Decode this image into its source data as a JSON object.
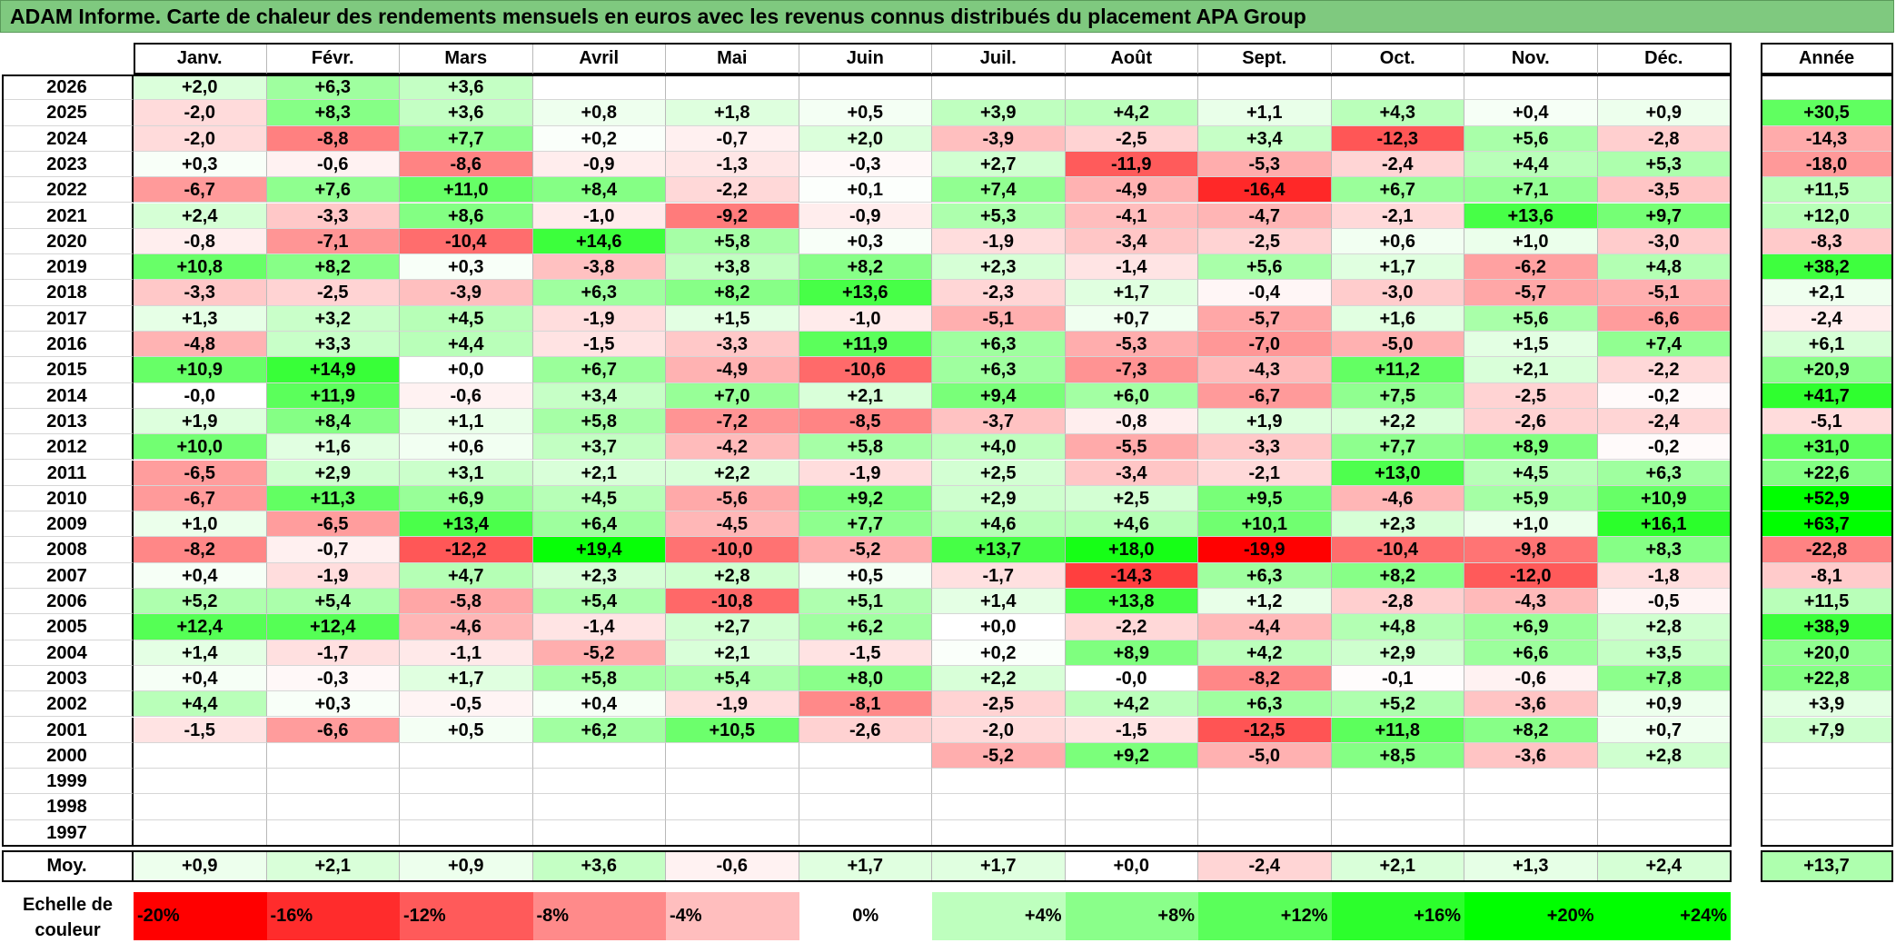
{
  "title": "ADAM Informe. Carte de chaleur des rendements mensuels en euros avec les revenus connus distribués du placement APA Group",
  "colors": {
    "title_bg": "#7fc97f",
    "positive_max": "#00ff00",
    "negative_max": "#ff0000",
    "neutral": "#ffffff"
  },
  "chart_data": {
    "type": "heatmap",
    "title": "ADAM Informe. Carte de chaleur des rendements mensuels en euros avec les revenus connus distribués du placement APA Group",
    "months": [
      "Janv.",
      "Févr.",
      "Mars",
      "Avril",
      "Mai",
      "Juin",
      "Juil.",
      "Août",
      "Sept.",
      "Oct.",
      "Nov.",
      "Déc."
    ],
    "year_header": "Année",
    "rows": [
      {
        "year": "2026",
        "months": [
          "+2,0",
          "+6,3",
          "+3,6",
          "",
          "",
          "",
          "",
          "",
          "",
          "",
          "",
          ""
        ],
        "annual": ""
      },
      {
        "year": "2025",
        "months": [
          "-2,0",
          "+8,3",
          "+3,6",
          "+0,8",
          "+1,8",
          "+0,5",
          "+3,9",
          "+4,2",
          "+1,1",
          "+4,3",
          "+0,4",
          "+0,9"
        ],
        "annual": "+30,5"
      },
      {
        "year": "2024",
        "months": [
          "-2,0",
          "-8,8",
          "+7,7",
          "+0,2",
          "-0,7",
          "+2,0",
          "-3,9",
          "-2,5",
          "+3,4",
          "-12,3",
          "+5,6",
          "-2,8"
        ],
        "annual": "-14,3"
      },
      {
        "year": "2023",
        "months": [
          "+0,3",
          "-0,6",
          "-8,6",
          "-0,9",
          "-1,3",
          "-0,3",
          "+2,7",
          "-11,9",
          "-5,3",
          "-2,4",
          "+4,4",
          "+5,3"
        ],
        "annual": "-18,0"
      },
      {
        "year": "2022",
        "months": [
          "-6,7",
          "+7,6",
          "+11,0",
          "+8,4",
          "-2,2",
          "+0,1",
          "+7,4",
          "-4,9",
          "-16,4",
          "+6,7",
          "+7,1",
          "-3,5"
        ],
        "annual": "+11,5"
      },
      {
        "year": "2021",
        "months": [
          "+2,4",
          "-3,3",
          "+8,6",
          "-1,0",
          "-9,2",
          "-0,9",
          "+5,3",
          "-4,1",
          "-4,7",
          "-2,1",
          "+13,6",
          "+9,7"
        ],
        "annual": "+12,0"
      },
      {
        "year": "2020",
        "months": [
          "-0,8",
          "-7,1",
          "-10,4",
          "+14,6",
          "+5,8",
          "+0,3",
          "-1,9",
          "-3,4",
          "-2,5",
          "+0,6",
          "+1,0",
          "-3,0"
        ],
        "annual": "-8,3"
      },
      {
        "year": "2019",
        "months": [
          "+10,8",
          "+8,2",
          "+0,3",
          "-3,8",
          "+3,8",
          "+8,2",
          "+2,3",
          "-1,4",
          "+5,6",
          "+1,7",
          "-6,2",
          "+4,8"
        ],
        "annual": "+38,2"
      },
      {
        "year": "2018",
        "months": [
          "-3,3",
          "-2,5",
          "-3,9",
          "+6,3",
          "+8,2",
          "+13,6",
          "-2,3",
          "+1,7",
          "-0,4",
          "-3,0",
          "-5,7",
          "-5,1"
        ],
        "annual": "+2,1"
      },
      {
        "year": "2017",
        "months": [
          "+1,3",
          "+3,2",
          "+4,5",
          "-1,9",
          "+1,5",
          "-1,0",
          "-5,1",
          "+0,7",
          "-5,7",
          "+1,6",
          "+5,6",
          "-6,6"
        ],
        "annual": "-2,4"
      },
      {
        "year": "2016",
        "months": [
          "-4,8",
          "+3,3",
          "+4,4",
          "-1,5",
          "-3,3",
          "+11,9",
          "+6,3",
          "-5,3",
          "-7,0",
          "-5,0",
          "+1,5",
          "+7,4"
        ],
        "annual": "+6,1"
      },
      {
        "year": "2015",
        "months": [
          "+10,9",
          "+14,9",
          "+0,0",
          "+6,7",
          "-4,9",
          "-10,6",
          "+6,3",
          "-7,3",
          "-4,3",
          "+11,2",
          "+2,1",
          "-2,2"
        ],
        "annual": "+20,9"
      },
      {
        "year": "2014",
        "months": [
          "-0,0",
          "+11,9",
          "-0,6",
          "+3,4",
          "+7,0",
          "+2,1",
          "+9,4",
          "+6,0",
          "-6,7",
          "+7,5",
          "-2,5",
          "-0,2"
        ],
        "annual": "+41,7"
      },
      {
        "year": "2013",
        "months": [
          "+1,9",
          "+8,4",
          "+1,1",
          "+5,8",
          "-7,2",
          "-8,5",
          "-3,7",
          "-0,8",
          "+1,9",
          "+2,2",
          "-2,6",
          "-2,4"
        ],
        "annual": "-5,1"
      },
      {
        "year": "2012",
        "months": [
          "+10,0",
          "+1,6",
          "+0,6",
          "+3,7",
          "-4,2",
          "+5,8",
          "+4,0",
          "-5,5",
          "-3,3",
          "+7,7",
          "+8,9",
          "-0,2"
        ],
        "annual": "+31,0"
      },
      {
        "year": "2011",
        "months": [
          "-6,5",
          "+2,9",
          "+3,1",
          "+2,1",
          "+2,2",
          "-1,9",
          "+2,5",
          "-3,4",
          "-2,1",
          "+13,0",
          "+4,5",
          "+6,3"
        ],
        "annual": "+22,6"
      },
      {
        "year": "2010",
        "months": [
          "-6,7",
          "+11,3",
          "+6,9",
          "+4,5",
          "-5,6",
          "+9,2",
          "+2,9",
          "+2,5",
          "+9,5",
          "-4,6",
          "+5,9",
          "+10,9"
        ],
        "annual": "+52,9"
      },
      {
        "year": "2009",
        "months": [
          "+1,0",
          "-6,5",
          "+13,4",
          "+6,4",
          "-4,5",
          "+7,7",
          "+4,6",
          "+4,6",
          "+10,1",
          "+2,3",
          "+1,0",
          "+16,1"
        ],
        "annual": "+63,7"
      },
      {
        "year": "2008",
        "months": [
          "-8,2",
          "-0,7",
          "-12,2",
          "+19,4",
          "-10,0",
          "-5,2",
          "+13,7",
          "+18,0",
          "-19,9",
          "-10,4",
          "-9,8",
          "+8,3"
        ],
        "annual": "-22,8"
      },
      {
        "year": "2007",
        "months": [
          "+0,4",
          "-1,9",
          "+4,7",
          "+2,3",
          "+2,8",
          "+0,5",
          "-1,7",
          "-14,3",
          "+6,3",
          "+8,2",
          "-12,0",
          "-1,8"
        ],
        "annual": "-8,1"
      },
      {
        "year": "2006",
        "months": [
          "+5,2",
          "+5,4",
          "-5,8",
          "+5,4",
          "-10,8",
          "+5,1",
          "+1,4",
          "+13,8",
          "+1,2",
          "-2,8",
          "-4,3",
          "-0,5"
        ],
        "annual": "+11,5"
      },
      {
        "year": "2005",
        "months": [
          "+12,4",
          "+12,4",
          "-4,6",
          "-1,4",
          "+2,7",
          "+6,2",
          "+0,0",
          "-2,2",
          "-4,4",
          "+4,8",
          "+6,9",
          "+2,8"
        ],
        "annual": "+38,9"
      },
      {
        "year": "2004",
        "months": [
          "+1,4",
          "-1,7",
          "-1,1",
          "-5,2",
          "+2,1",
          "-1,5",
          "+0,2",
          "+8,9",
          "+4,2",
          "+2,9",
          "+6,6",
          "+3,5"
        ],
        "annual": "+20,0"
      },
      {
        "year": "2003",
        "months": [
          "+0,4",
          "-0,3",
          "+1,7",
          "+5,8",
          "+5,4",
          "+8,0",
          "+2,2",
          "-0,0",
          "-8,2",
          "-0,1",
          "-0,6",
          "+7,8"
        ],
        "annual": "+22,8"
      },
      {
        "year": "2002",
        "months": [
          "+4,4",
          "+0,3",
          "-0,5",
          "+0,4",
          "-1,9",
          "-8,1",
          "-2,5",
          "+4,2",
          "+6,3",
          "+5,2",
          "-3,6",
          "+0,9"
        ],
        "annual": "+3,9"
      },
      {
        "year": "2001",
        "months": [
          "-1,5",
          "-6,6",
          "+0,5",
          "+6,2",
          "+10,5",
          "-2,6",
          "-2,0",
          "-1,5",
          "-12,5",
          "+11,8",
          "+8,2",
          "+0,7"
        ],
        "annual": "+7,9"
      },
      {
        "year": "2000",
        "months": [
          "",
          "",
          "",
          "",
          "",
          "",
          "-5,2",
          "+9,2",
          "-5,0",
          "+8,5",
          "-3,6",
          "+2,8"
        ],
        "annual": ""
      },
      {
        "year": "1999",
        "months": [
          "",
          "",
          "",
          "",
          "",
          "",
          "",
          "",
          "",
          "",
          "",
          ""
        ],
        "annual": ""
      },
      {
        "year": "1998",
        "months": [
          "",
          "",
          "",
          "",
          "",
          "",
          "",
          "",
          "",
          "",
          "",
          ""
        ],
        "annual": ""
      },
      {
        "year": "1997",
        "months": [
          "",
          "",
          "",
          "",
          "",
          "",
          "",
          "",
          "",
          "",
          "",
          ""
        ],
        "annual": ""
      }
    ],
    "average": {
      "label": "Moy.",
      "months": [
        "+0,9",
        "+2,1",
        "+0,9",
        "+3,6",
        "-0,6",
        "+1,7",
        "+1,7",
        "+0,0",
        "-2,4",
        "+2,1",
        "+1,3",
        "+2,4"
      ],
      "annual": "+13,7"
    },
    "color_scale": {
      "label": "Echelle de couleur",
      "stops": [
        {
          "label": "-20%",
          "value": -20
        },
        {
          "label": "-16%",
          "value": -16
        },
        {
          "label": "-12%",
          "value": -12
        },
        {
          "label": "-8%",
          "value": -8
        },
        {
          "label": "-4%",
          "value": -4
        },
        {
          "label": "0%",
          "value": 0
        },
        {
          "label": "+4%",
          "value": 4
        },
        {
          "label": "+8%",
          "value": 8
        },
        {
          "label": "+12%",
          "value": 12
        },
        {
          "label": "+16%",
          "value": 16
        },
        {
          "label": "+20%",
          "value": 20
        },
        {
          "label": "+24%",
          "value": 24
        }
      ]
    }
  }
}
